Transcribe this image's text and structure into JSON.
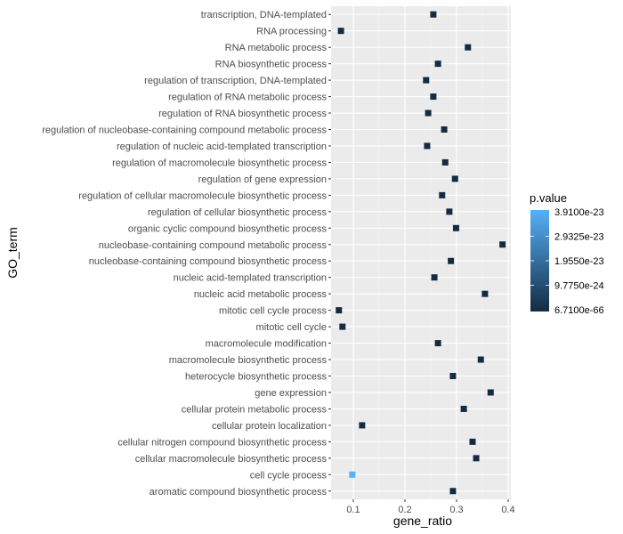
{
  "chart_data": {
    "type": "scatter",
    "title": "",
    "xlabel": "gene_ratio",
    "ylabel": "GO_term",
    "xlim": [
      0.06,
      0.4
    ],
    "x_ticks": [
      0.1,
      0.2,
      0.3,
      0.4
    ],
    "x_tick_labels": [
      "0.1",
      "0.2",
      "0.3",
      "0.4"
    ],
    "grid": true,
    "legend": {
      "title": "p.value",
      "position": "right",
      "type": "colorbar",
      "labels": [
        "3.9100e-23",
        "2.9325e-23",
        "1.9550e-23",
        "9.7750e-24",
        "6.7100e-66"
      ],
      "low_color": "#132B43",
      "high_color": "#56B1F7"
    },
    "points": [
      {
        "term": "transcription, DNA-templated",
        "gene_ratio": 0.255,
        "color_level": 0.0
      },
      {
        "term": "RNA processing",
        "gene_ratio": 0.076,
        "color_level": 0.0
      },
      {
        "term": "RNA metabolic process",
        "gene_ratio": 0.322,
        "color_level": 0.0
      },
      {
        "term": "RNA biosynthetic process",
        "gene_ratio": 0.264,
        "color_level": 0.0
      },
      {
        "term": "regulation of transcription, DNA-templated",
        "gene_ratio": 0.241,
        "color_level": 0.0
      },
      {
        "term": "regulation of RNA metabolic process",
        "gene_ratio": 0.255,
        "color_level": 0.0
      },
      {
        "term": "regulation of RNA biosynthetic process",
        "gene_ratio": 0.245,
        "color_level": 0.0
      },
      {
        "term": "regulation of nucleobase-containing compound metabolic process",
        "gene_ratio": 0.276,
        "color_level": 0.0
      },
      {
        "term": "regulation of nucleic acid-templated transcription",
        "gene_ratio": 0.243,
        "color_level": 0.0
      },
      {
        "term": "regulation of macromolecule biosynthetic process",
        "gene_ratio": 0.278,
        "color_level": 0.0
      },
      {
        "term": "regulation of gene expression",
        "gene_ratio": 0.297,
        "color_level": 0.0
      },
      {
        "term": "regulation of cellular macromolecule biosynthetic process",
        "gene_ratio": 0.272,
        "color_level": 0.0
      },
      {
        "term": "regulation of cellular biosynthetic process",
        "gene_ratio": 0.286,
        "color_level": 0.0
      },
      {
        "term": "organic cyclic compound biosynthetic process",
        "gene_ratio": 0.299,
        "color_level": 0.0
      },
      {
        "term": "nucleobase-containing compound metabolic process",
        "gene_ratio": 0.389,
        "color_level": 0.0
      },
      {
        "term": "nucleobase-containing compound biosynthetic process",
        "gene_ratio": 0.289,
        "color_level": 0.0
      },
      {
        "term": "nucleic acid-templated transcription",
        "gene_ratio": 0.257,
        "color_level": 0.0
      },
      {
        "term": "nucleic acid metabolic process",
        "gene_ratio": 0.355,
        "color_level": 0.0
      },
      {
        "term": "mitotic cell cycle process",
        "gene_ratio": 0.072,
        "color_level": 0.0
      },
      {
        "term": "mitotic cell cycle",
        "gene_ratio": 0.079,
        "color_level": 0.0
      },
      {
        "term": "macromolecule modification",
        "gene_ratio": 0.264,
        "color_level": 0.0
      },
      {
        "term": "macromolecule biosynthetic process",
        "gene_ratio": 0.347,
        "color_level": 0.0
      },
      {
        "term": "heterocycle biosynthetic process",
        "gene_ratio": 0.293,
        "color_level": 0.0
      },
      {
        "term": "gene expression",
        "gene_ratio": 0.366,
        "color_level": 0.0
      },
      {
        "term": "cellular protein metabolic process",
        "gene_ratio": 0.314,
        "color_level": 0.0
      },
      {
        "term": "cellular protein localization",
        "gene_ratio": 0.117,
        "color_level": 0.0
      },
      {
        "term": "cellular nitrogen compound biosynthetic process",
        "gene_ratio": 0.331,
        "color_level": 0.0
      },
      {
        "term": "cellular macromolecule biosynthetic process",
        "gene_ratio": 0.338,
        "color_level": 0.0
      },
      {
        "term": "cell cycle process",
        "gene_ratio": 0.098,
        "color_level": 1.0
      },
      {
        "term": "aromatic compound biosynthetic process",
        "gene_ratio": 0.293,
        "color_level": 0.0
      }
    ]
  }
}
